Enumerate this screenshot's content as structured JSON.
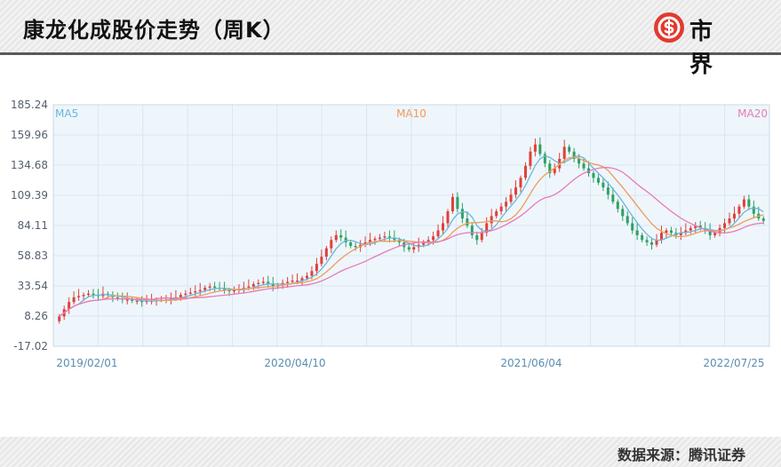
{
  "header": {
    "title": "康龙化成股价走势（周K）",
    "logo_text": "市界",
    "logo_icon": "dollar-s-icon",
    "logo_color": "#e23a2e"
  },
  "footer": {
    "source": "数据来源：腾讯证券"
  },
  "colors": {
    "up": "#e0403a",
    "down": "#2fa062",
    "ma5": "#6cb6d8",
    "ma10": "#f29a5a",
    "ma20": "#ea7ab8",
    "plot_bg": "#eef6fc",
    "grid": "#d9e6f0"
  },
  "chart_data": {
    "type": "candlestick",
    "title": "康龙化成股价走势（周K）",
    "y_ticks": [
      "185.24",
      "159.96",
      "134.68",
      "109.39",
      "84.11",
      "58.83",
      "33.54",
      "8.26",
      "-17.02"
    ],
    "ylim": [
      -17.02,
      185.24
    ],
    "x_ticks": [
      "2019/02/01",
      "2020/04/10",
      "2021/06/04",
      "2022/07/25"
    ],
    "grid": true,
    "legend": [
      {
        "name": "MA5",
        "placement": "top-left"
      },
      {
        "name": "MA10",
        "placement": "top-center"
      },
      {
        "name": "MA20",
        "placement": "top-right"
      }
    ],
    "weekly_close_approx": [
      8,
      14,
      20,
      24,
      25,
      26,
      27,
      26,
      25,
      27,
      26,
      24,
      23,
      22,
      22,
      21,
      21,
      20,
      21,
      21,
      22,
      22,
      22,
      23,
      24,
      26,
      27,
      28,
      29,
      30,
      32,
      33,
      32,
      31,
      30,
      29,
      30,
      31,
      32,
      33,
      35,
      36,
      37,
      35,
      33,
      34,
      36,
      37,
      38,
      38,
      40,
      42,
      46,
      52,
      58,
      65,
      72,
      76,
      74,
      70,
      67,
      66,
      68,
      70,
      72,
      73,
      74,
      75,
      74,
      72,
      70,
      66,
      64,
      66,
      68,
      70,
      72,
      75,
      80,
      86,
      96,
      108,
      98,
      90,
      84,
      76,
      72,
      78,
      86,
      92,
      96,
      100,
      104,
      110,
      116,
      124,
      134,
      146,
      152,
      144,
      136,
      128,
      132,
      140,
      150,
      146,
      140,
      136,
      132,
      128,
      124,
      120,
      116,
      110,
      104,
      98,
      92,
      86,
      80,
      76,
      72,
      70,
      68,
      72,
      78,
      80,
      78,
      76,
      78,
      80,
      82,
      84,
      82,
      80,
      76,
      78,
      82,
      86,
      90,
      94,
      100,
      106,
      100,
      94,
      90,
      88
    ]
  }
}
